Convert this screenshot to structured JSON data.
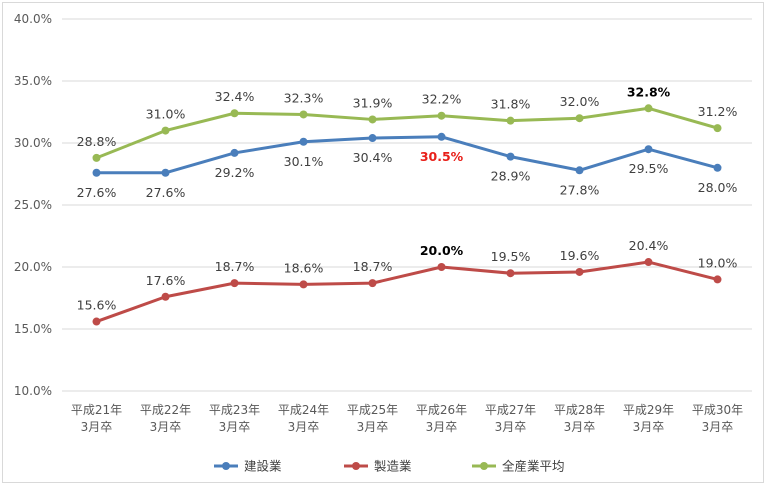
{
  "chart_data": {
    "type": "line",
    "categories": [
      [
        "平成21年",
        "3月卒"
      ],
      [
        "平成22年",
        "3月卒"
      ],
      [
        "平成23年",
        "3月卒"
      ],
      [
        "平成24年",
        "3月卒"
      ],
      [
        "平成25年",
        "3月卒"
      ],
      [
        "平成26年",
        "3月卒"
      ],
      [
        "平成27年",
        "3月卒"
      ],
      [
        "平成28年",
        "3月卒"
      ],
      [
        "平成29年",
        "3月卒"
      ],
      [
        "平成30年",
        "3月卒"
      ]
    ],
    "y_ticks": [
      "10.0%",
      "15.0%",
      "20.0%",
      "25.0%",
      "30.0%",
      "35.0%",
      "40.0%"
    ],
    "ylim": [
      10,
      40
    ],
    "grid": "horizontal",
    "legend_position": "bottom",
    "series": [
      {
        "name": "建設業",
        "color": "#4a7ebb",
        "values": [
          27.6,
          27.6,
          29.2,
          30.1,
          30.4,
          30.5,
          28.9,
          27.8,
          29.5,
          28.0
        ],
        "labels": [
          "27.6%",
          "27.6%",
          "29.2%",
          "30.1%",
          "30.4%",
          "30.5%",
          "28.9%",
          "27.8%",
          "29.5%",
          "28.0%"
        ],
        "label_pos": "below",
        "highlight": [
          {
            "index": 5,
            "color": "#e8201a"
          }
        ]
      },
      {
        "name": "製造業",
        "color": "#be4b48",
        "values": [
          15.6,
          17.6,
          18.7,
          18.6,
          18.7,
          20.0,
          19.5,
          19.6,
          20.4,
          19.0
        ],
        "labels": [
          "15.6%",
          "17.6%",
          "18.7%",
          "18.6%",
          "18.7%",
          "20.0%",
          "19.5%",
          "19.6%",
          "20.4%",
          "19.0%"
        ],
        "label_pos": "above",
        "highlight": [
          {
            "index": 5,
            "color": "#000000"
          }
        ]
      },
      {
        "name": "全産業平均",
        "color": "#98b954",
        "values": [
          28.8,
          31.0,
          32.4,
          32.3,
          31.9,
          32.2,
          31.8,
          32.0,
          32.8,
          31.2
        ],
        "labels": [
          "28.8%",
          "31.0%",
          "32.4%",
          "32.3%",
          "31.9%",
          "32.2%",
          "31.8%",
          "32.0%",
          "32.8%",
          "31.2%"
        ],
        "label_pos": "above",
        "highlight": [
          {
            "index": 8,
            "color": "#000000"
          }
        ]
      }
    ]
  }
}
